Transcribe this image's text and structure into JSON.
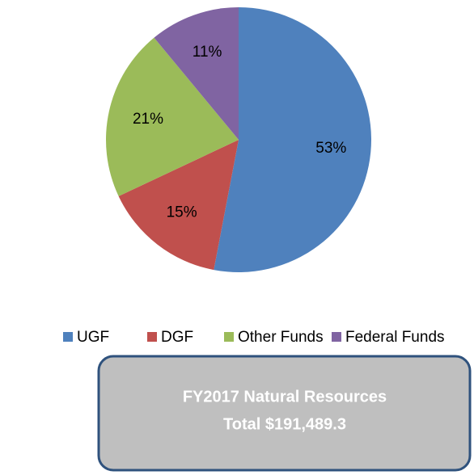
{
  "chart_data": {
    "type": "pie",
    "categories": [
      "UGF",
      "DGF",
      "Other Funds",
      "Federal Funds"
    ],
    "values": [
      53,
      15,
      21,
      11
    ],
    "value_labels": [
      "53%",
      "15%",
      "21%",
      "11%"
    ],
    "colors": [
      "#4f81bd",
      "#c0504d",
      "#9bbb59",
      "#8064a2"
    ],
    "annotations": [
      "FY2017 Natural Resources",
      "Total $191,489.3"
    ]
  }
}
